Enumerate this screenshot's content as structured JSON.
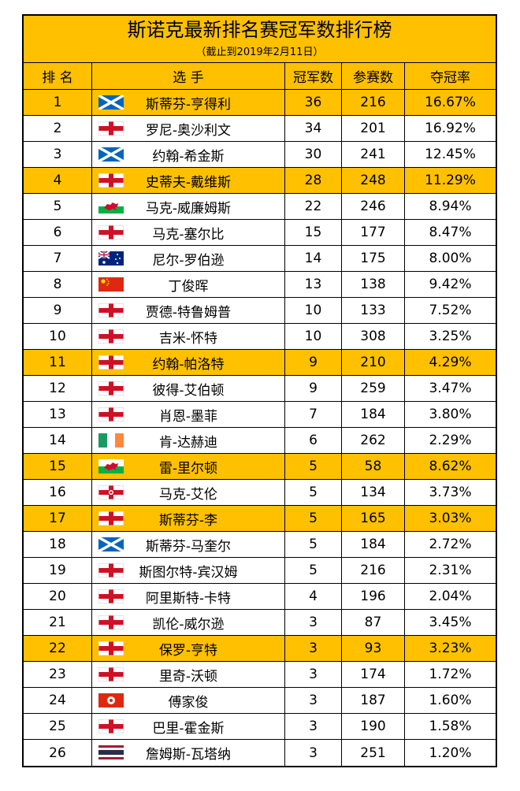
{
  "title": "斯诺克最新排名赛冠军数排行榜",
  "subtitle": "（截止到2019年2月11日）",
  "table": {
    "header": [
      "排 名",
      "选 手",
      "冠军数",
      "参赛数",
      "夺冠率"
    ],
    "rows": [
      [
        "1",
        "斯蒂芬-亨得利",
        "36",
        "216",
        "16.67%"
      ],
      [
        "2",
        "罗尼-奥沙利文",
        "34",
        "201",
        "16.92%"
      ],
      [
        "3",
        "约翰-希金斯",
        "30",
        "241",
        "12.45%"
      ],
      [
        "4",
        "史蒂夫-戴维斯",
        "28",
        "248",
        "11.29%"
      ],
      [
        "5",
        "马克-威廉姆斯",
        "22",
        "246",
        "8.94%"
      ],
      [
        "6",
        "马克-塞尔比",
        "15",
        "177",
        "8.47%"
      ],
      [
        "7",
        "尼尔-罗伯逊",
        "14",
        "175",
        "8.00%"
      ],
      [
        "8",
        "丁俊晖",
        "13",
        "138",
        "9.42%"
      ],
      [
        "9",
        "贾德-特鲁姆普",
        "10",
        "133",
        "7.52%"
      ],
      [
        "10",
        "吉米-怀特",
        "10",
        "308",
        "3.25%"
      ],
      [
        "11",
        "约翰-帕洛特",
        "9",
        "210",
        "4.29%"
      ],
      [
        "12",
        "彼得-艾伯顿",
        "9",
        "259",
        "3.47%"
      ],
      [
        "13",
        "肖恩-墨菲",
        "7",
        "184",
        "3.80%"
      ],
      [
        "14",
        "肯-达赫迪",
        "6",
        "262",
        "2.29%"
      ],
      [
        "15",
        "雷-里尔顿",
        "5",
        "58",
        "8.62%"
      ],
      [
        "16",
        "马克-艾伦",
        "5",
        "134",
        "3.73%"
      ],
      [
        "17",
        "斯蒂芬-李",
        "5",
        "165",
        "3.03%"
      ],
      [
        "18",
        "斯蒂芬-马奎尔",
        "5",
        "184",
        "2.72%"
      ],
      [
        "19",
        "斯图尔特-宾汉姆",
        "5",
        "216",
        "2.31%"
      ],
      [
        "20",
        "阿里斯特-卡特",
        "4",
        "196",
        "2.04%"
      ],
      [
        "21",
        "凯伦-威尔逊",
        "3",
        "87",
        "3.45%"
      ],
      [
        "22",
        "保罗-亨特",
        "3",
        "93",
        "3.23%"
      ],
      [
        "23",
        "里奇-沃顿",
        "3",
        "174",
        "1.72%"
      ],
      [
        "24",
        "傅家俊",
        "3",
        "187",
        "1.60%"
      ],
      [
        "25",
        "巴里-霍金斯",
        "3",
        "190",
        "1.58%"
      ],
      [
        "26",
        "詹姆斯-瓦塔纳",
        "3",
        "251",
        "1.20%"
      ]
    ]
  }
}
